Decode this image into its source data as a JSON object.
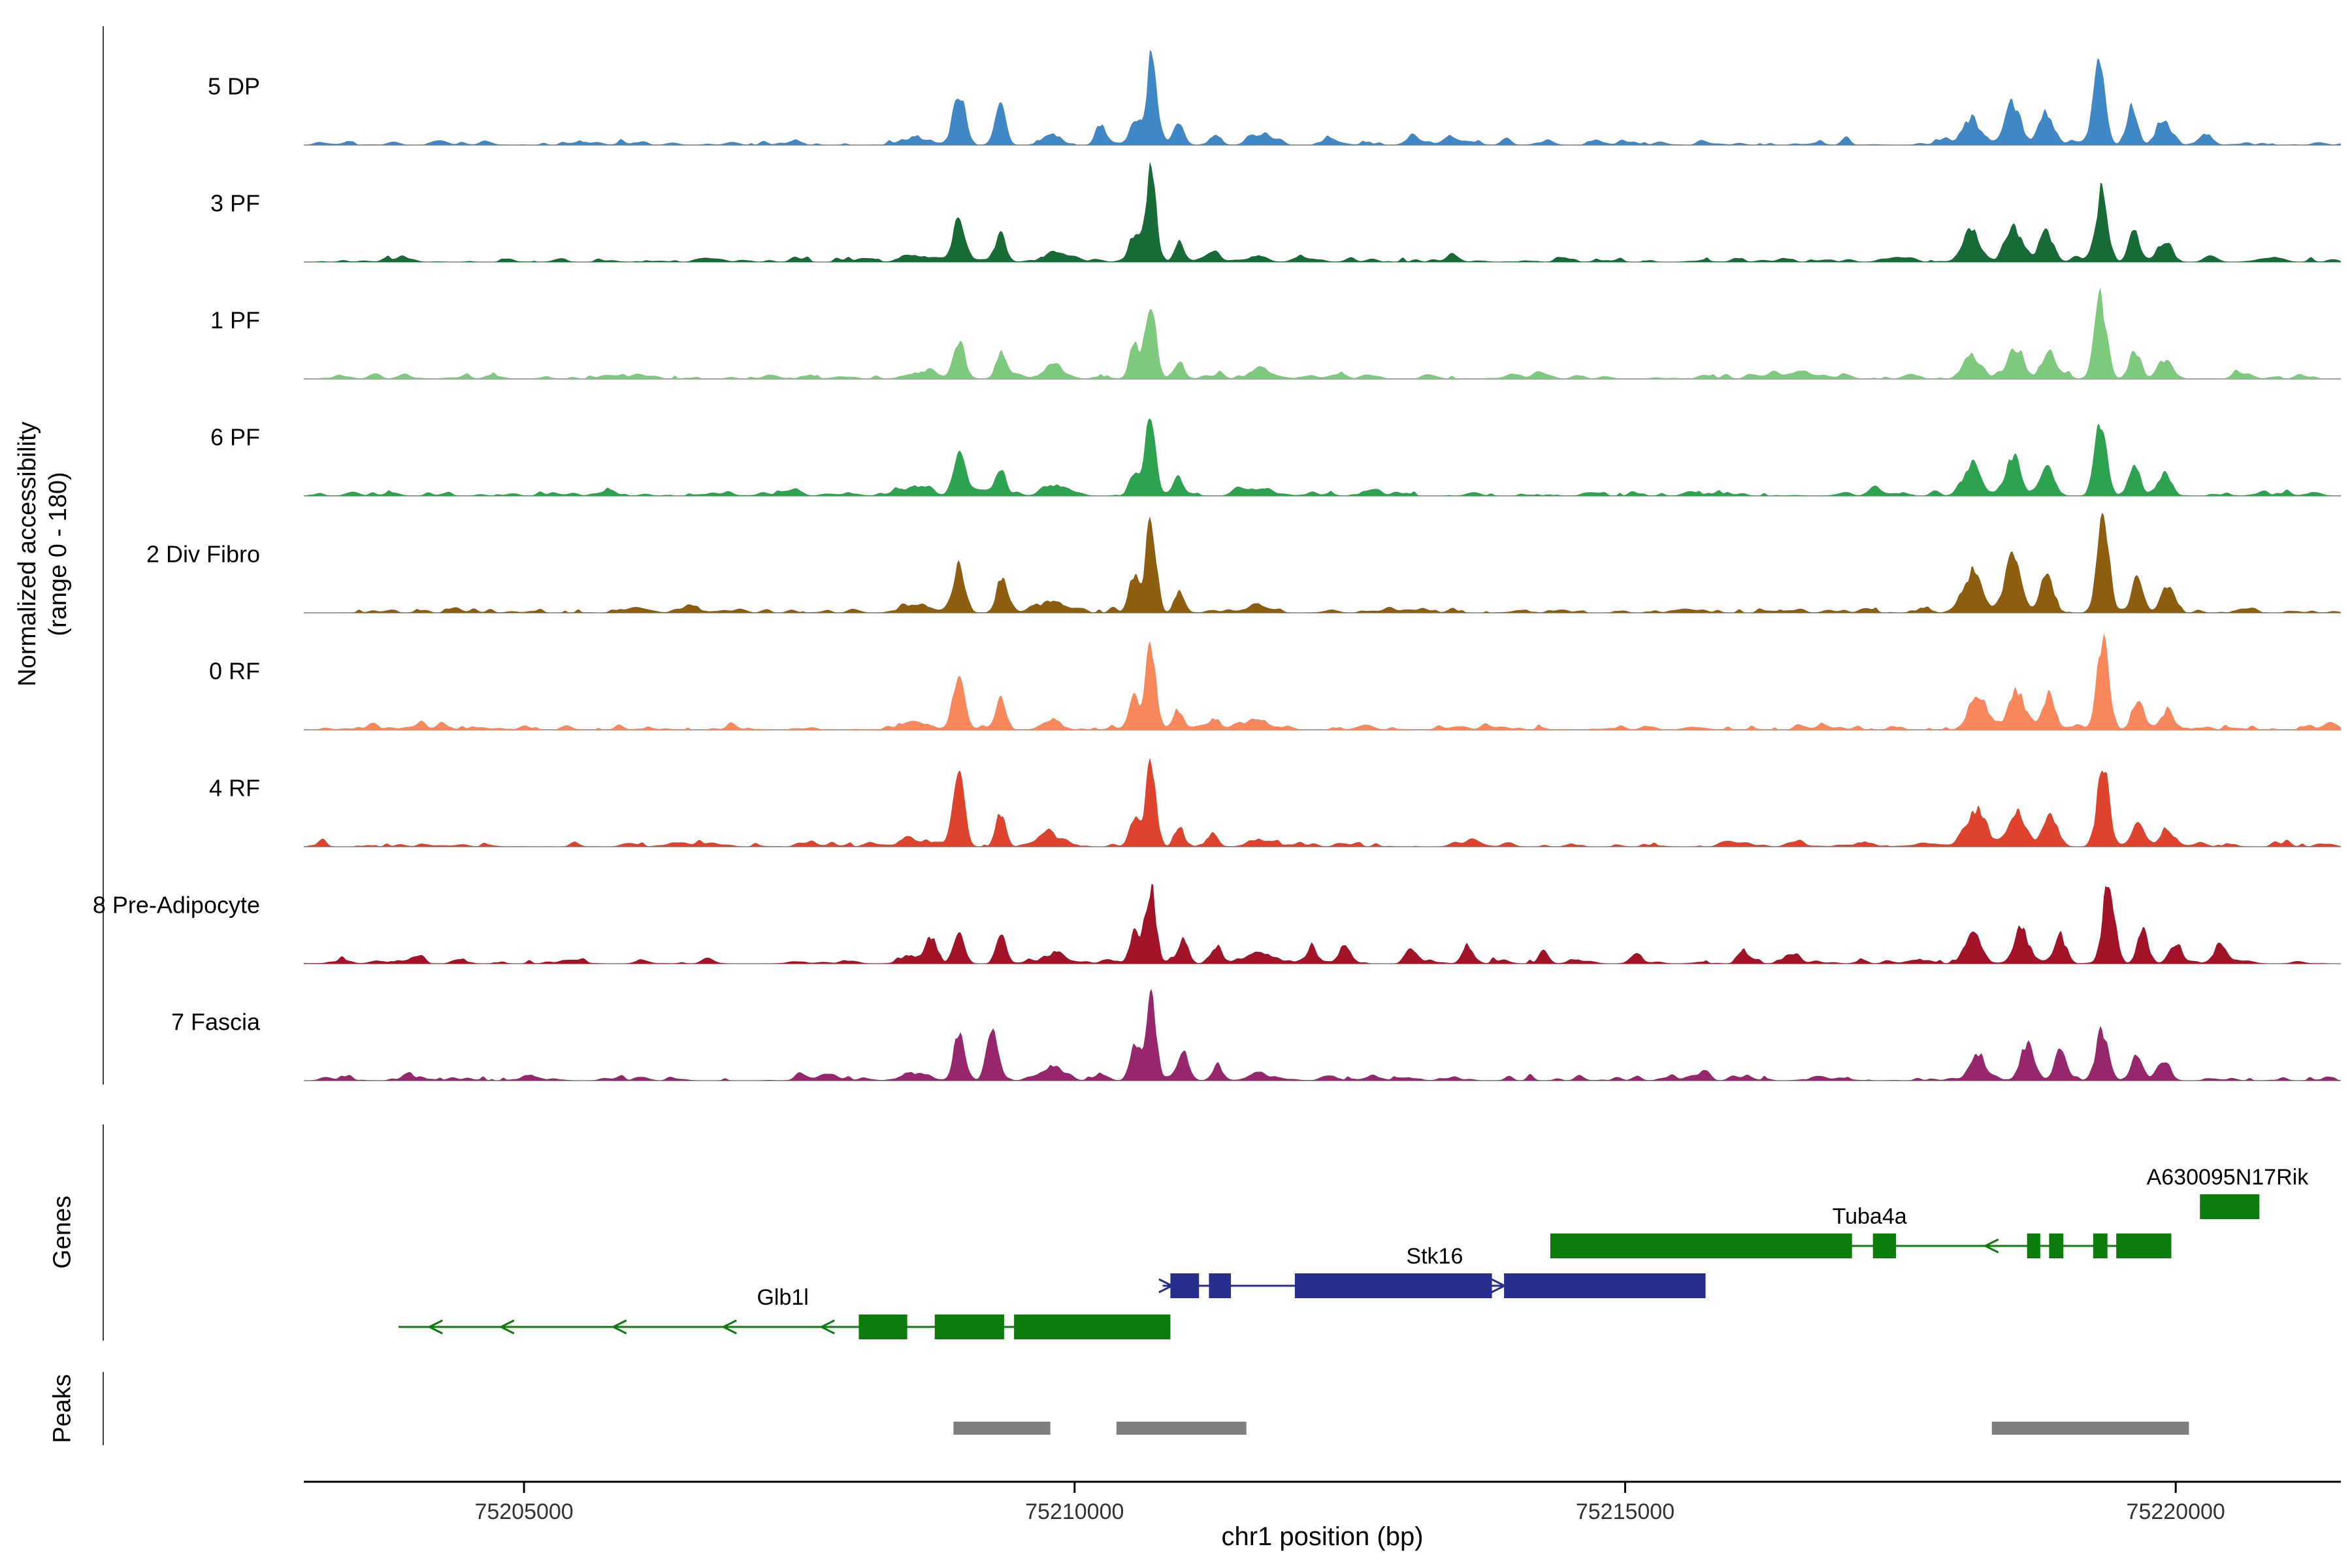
{
  "figure": {
    "labels": {
      "y_axis_line1": "Normalized accessibility",
      "y_axis_line2": "(range 0 - 180)",
      "genes_section": "Genes",
      "peaks_section": "Peaks",
      "x_axis": "chr1 position (bp)"
    }
  },
  "chart_data": {
    "type": "area",
    "subtype": "genome-coverage-tracks",
    "chromosome": "chr1",
    "x_axis_label": "chr1 position (bp)",
    "y_axis_label": "Normalized accessibility (range 0 - 180)",
    "per_track_y_range": [
      0,
      180
    ],
    "x_range_bp": [
      75203000,
      75221500
    ],
    "x_ticks": [
      {
        "bp": 75205000,
        "label": "75205000"
      },
      {
        "bp": 75210000,
        "label": "75210000"
      },
      {
        "bp": 75215000,
        "label": "75215000"
      },
      {
        "bp": 75220000,
        "label": "75220000"
      }
    ],
    "grid": false,
    "legend": false,
    "tracks": [
      {
        "label": "5 DP",
        "color": "#3f88c5",
        "seed": 11,
        "peaks": [
          [
            75208950,
            100,
            55
          ],
          [
            75209330,
            78,
            45
          ],
          [
            75210240,
            30,
            50
          ],
          [
            75210540,
            55,
            45
          ],
          [
            75210690,
            150,
            48
          ],
          [
            75210940,
            42,
            45
          ],
          [
            75211280,
            22,
            45
          ],
          [
            75212300,
            12,
            60
          ],
          [
            75213060,
            16,
            60
          ],
          [
            75218140,
            52,
            80
          ],
          [
            75218520,
            78,
            70
          ],
          [
            75218830,
            62,
            60
          ],
          [
            75219300,
            150,
            55
          ],
          [
            75219600,
            72,
            50
          ],
          [
            75219880,
            50,
            60
          ],
          [
            75220280,
            16,
            60
          ],
          [
            75208560,
            12,
            120
          ],
          [
            75209790,
            20,
            85
          ],
          [
            75211660,
            14,
            85
          ]
        ]
      },
      {
        "label": "3 PF",
        "color": "#166b36",
        "seed": 22,
        "peaks": [
          [
            75208950,
            82,
            55
          ],
          [
            75209330,
            62,
            45
          ],
          [
            75210540,
            50,
            45
          ],
          [
            75210690,
            170,
            48
          ],
          [
            75210950,
            38,
            45
          ],
          [
            75211280,
            16,
            45
          ],
          [
            75218150,
            56,
            80
          ],
          [
            75218520,
            72,
            70
          ],
          [
            75218830,
            56,
            60
          ],
          [
            75219320,
            135,
            55
          ],
          [
            75219620,
            54,
            50
          ],
          [
            75219900,
            36,
            60
          ],
          [
            75208560,
            10,
            120
          ],
          [
            75209790,
            16,
            85
          ],
          [
            75211660,
            12,
            85
          ]
        ]
      },
      {
        "label": "1 PF",
        "color": "#7dc97d",
        "seed": 33,
        "peaks": [
          [
            75208950,
            70,
            55
          ],
          [
            75209330,
            48,
            45
          ],
          [
            75210540,
            58,
            45
          ],
          [
            75210690,
            165,
            48
          ],
          [
            75210950,
            32,
            45
          ],
          [
            75218150,
            48,
            80
          ],
          [
            75218550,
            62,
            70
          ],
          [
            75218850,
            54,
            60
          ],
          [
            75219320,
            150,
            55
          ],
          [
            75219630,
            52,
            50
          ],
          [
            75219900,
            34,
            60
          ],
          [
            75208560,
            10,
            120
          ],
          [
            75209790,
            16,
            85
          ],
          [
            75211660,
            12,
            85
          ]
        ]
      },
      {
        "label": "6 PF",
        "color": "#2da24f",
        "seed": 44,
        "peaks": [
          [
            75208950,
            74,
            55
          ],
          [
            75209330,
            52,
            45
          ],
          [
            75210540,
            50,
            45
          ],
          [
            75210690,
            150,
            48
          ],
          [
            75210950,
            34,
            45
          ],
          [
            75218150,
            62,
            80
          ],
          [
            75218520,
            80,
            70
          ],
          [
            75218830,
            64,
            60
          ],
          [
            75219320,
            140,
            55
          ],
          [
            75219630,
            58,
            50
          ],
          [
            75219900,
            40,
            60
          ],
          [
            75208560,
            11,
            120
          ],
          [
            75209790,
            17,
            85
          ],
          [
            75211660,
            13,
            85
          ]
        ]
      },
      {
        "label": "2 Div Fibro",
        "color": "#8d5e0f",
        "seed": 55,
        "peaks": [
          [
            75208950,
            90,
            55
          ],
          [
            75209330,
            64,
            45
          ],
          [
            75210540,
            72,
            45
          ],
          [
            75210690,
            178,
            48
          ],
          [
            75210950,
            42,
            45
          ],
          [
            75218150,
            82,
            80
          ],
          [
            75218520,
            100,
            70
          ],
          [
            75218830,
            82,
            60
          ],
          [
            75219340,
            175,
            55
          ],
          [
            75219650,
            64,
            50
          ],
          [
            75219920,
            46,
            60
          ],
          [
            75208560,
            14,
            120
          ],
          [
            75209790,
            22,
            85
          ],
          [
            75211660,
            16,
            85
          ]
        ]
      },
      {
        "label": "0 RF",
        "color": "#f9875c",
        "seed": 66,
        "peaks": [
          [
            75208950,
            90,
            55
          ],
          [
            75209330,
            62,
            45
          ],
          [
            75210540,
            56,
            45
          ],
          [
            75210690,
            150,
            48
          ],
          [
            75210950,
            38,
            45
          ],
          [
            75211280,
            20,
            45
          ],
          [
            75218200,
            72,
            80
          ],
          [
            75218550,
            70,
            70
          ],
          [
            75218850,
            58,
            60
          ],
          [
            75219340,
            155,
            55
          ],
          [
            75219650,
            56,
            50
          ],
          [
            75219920,
            38,
            60
          ],
          [
            75208560,
            13,
            120
          ],
          [
            75209790,
            20,
            85
          ],
          [
            75211660,
            15,
            85
          ]
        ]
      },
      {
        "label": "4 RF",
        "color": "#de432d",
        "seed": 77,
        "peaks": [
          [
            75208950,
            130,
            50
          ],
          [
            75209330,
            72,
            45
          ],
          [
            75210540,
            54,
            45
          ],
          [
            75210690,
            160,
            48
          ],
          [
            75210950,
            38,
            45
          ],
          [
            75211250,
            24,
            45
          ],
          [
            75218200,
            74,
            80
          ],
          [
            75218550,
            66,
            70
          ],
          [
            75218850,
            56,
            60
          ],
          [
            75219340,
            150,
            55
          ],
          [
            75219650,
            52,
            50
          ],
          [
            75219920,
            36,
            60
          ],
          [
            75208560,
            13,
            120
          ],
          [
            75209790,
            20,
            85
          ],
          [
            75211660,
            15,
            85
          ]
        ]
      },
      {
        "label": "8 Pre-Adipocyte",
        "color": "#a31328",
        "seed": 88,
        "peaks": [
          [
            75208700,
            40,
            50
          ],
          [
            75208950,
            64,
            50
          ],
          [
            75209330,
            52,
            45
          ],
          [
            75210540,
            52,
            45
          ],
          [
            75210690,
            160,
            48
          ],
          [
            75210990,
            46,
            45
          ],
          [
            75211300,
            32,
            45
          ],
          [
            75212150,
            36,
            45
          ],
          [
            75212450,
            26,
            45
          ],
          [
            75213060,
            20,
            45
          ],
          [
            75213560,
            36,
            45
          ],
          [
            75214260,
            24,
            45
          ],
          [
            75215100,
            18,
            45
          ],
          [
            75216060,
            24,
            45
          ],
          [
            75216560,
            16,
            45
          ],
          [
            75218150,
            56,
            70
          ],
          [
            75218600,
            72,
            60
          ],
          [
            75218950,
            56,
            55
          ],
          [
            75219390,
            180,
            50
          ],
          [
            75219700,
            62,
            50
          ],
          [
            75220000,
            42,
            55
          ],
          [
            75220400,
            26,
            50
          ],
          [
            75208560,
            12,
            120
          ],
          [
            75209790,
            18,
            85
          ],
          [
            75211660,
            16,
            85
          ]
        ]
      },
      {
        "label": "7 Fascia",
        "color": "#97276d",
        "seed": 99,
        "peaks": [
          [
            75208950,
            90,
            50
          ],
          [
            75209250,
            96,
            50
          ],
          [
            75210540,
            64,
            45
          ],
          [
            75210690,
            158,
            48
          ],
          [
            75210990,
            46,
            45
          ],
          [
            75211300,
            26,
            45
          ],
          [
            75218200,
            54,
            70
          ],
          [
            75218650,
            64,
            60
          ],
          [
            75218950,
            50,
            55
          ],
          [
            75219330,
            96,
            55
          ],
          [
            75219650,
            46,
            50
          ],
          [
            75219900,
            36,
            55
          ],
          [
            75208560,
            13,
            120
          ],
          [
            75209790,
            22,
            85
          ],
          [
            75211660,
            16,
            85
          ]
        ]
      }
    ],
    "genes": [
      {
        "name": "Glb1l",
        "color": "#0c7c0c",
        "strand": "-",
        "row": 3,
        "span_bp": [
          75203860,
          75210870
        ],
        "exons_bp": [
          [
            75208040,
            75208480
          ],
          [
            75208730,
            75209360
          ],
          [
            75209450,
            75210870
          ]
        ],
        "arrows_bp": [
          75204200,
          75204850,
          75205870,
          75206870,
          75207760
        ],
        "label_bp": 75207350
      },
      {
        "name": "Stk16",
        "color": "#272e8d",
        "strand": "+",
        "row": 2,
        "span_bp": [
          75210800,
          75215730
        ],
        "exons_bp": [
          [
            75210870,
            75211130
          ],
          [
            75211220,
            75211420
          ],
          [
            75212000,
            75213790
          ],
          [
            75213900,
            75215730
          ]
        ],
        "arrows_bp": [
          75210825,
          75213845
        ],
        "label_bp": 75213270
      },
      {
        "name": "Tuba4a",
        "color": "#0c7c0c",
        "strand": "-",
        "row": 1,
        "span_bp": [
          75214320,
          75219960
        ],
        "exons_bp": [
          [
            75214320,
            75217060
          ],
          [
            75217250,
            75217460
          ],
          [
            75218650,
            75218770
          ],
          [
            75218850,
            75218980
          ],
          [
            75219250,
            75219380
          ],
          [
            75219460,
            75219960
          ]
        ],
        "arrows_bp": [
          75218330
        ],
        "label_bp": 75217220
      },
      {
        "name": "A630095N17Rik",
        "color": "#0c7c0c",
        "strand": "-",
        "row": 0,
        "span_bp": [
          75220220,
          75220760
        ],
        "exons_bp": [
          [
            75220220,
            75220760
          ]
        ],
        "arrows_bp": [],
        "label_bp": 75220470
      }
    ],
    "peaks_track": {
      "color": "#7f7f7f",
      "regions_bp": [
        [
          75208900,
          75209780
        ],
        [
          75210380,
          75211560
        ],
        [
          75218330,
          75220120
        ]
      ]
    }
  }
}
